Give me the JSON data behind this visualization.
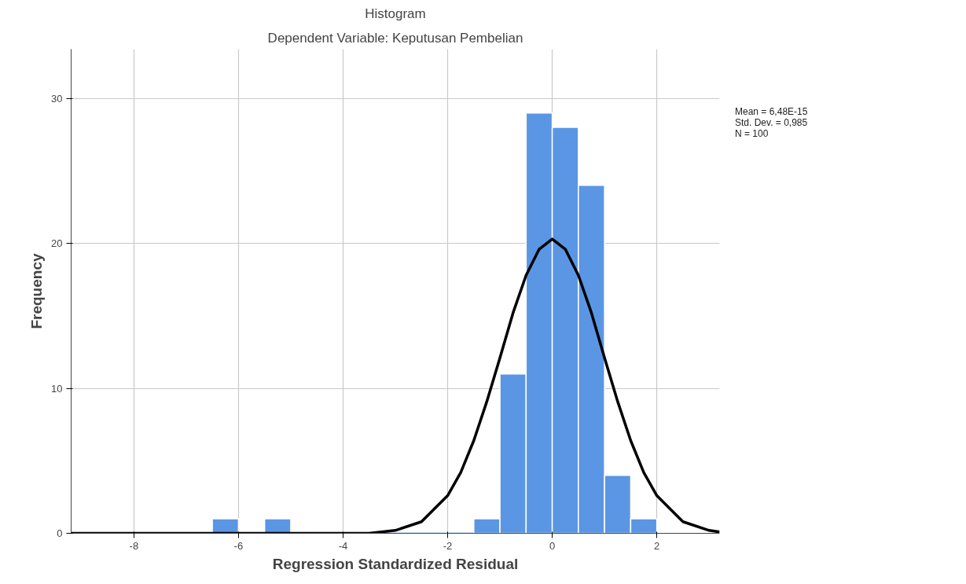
{
  "chart_data": {
    "type": "histogram",
    "title": "Histogram",
    "subtitle": "Dependent Variable: Keputusan Pembelian",
    "xlabel": "Regression Standardized Residual",
    "ylabel": "Frequency",
    "bins": [
      -6.5,
      -6,
      -5.5,
      -5,
      -4.5,
      -4,
      -3.5,
      -3,
      -2.5,
      -2,
      -1.5,
      -1,
      -0.5,
      0,
      0.5,
      1,
      1.5,
      2
    ],
    "values": [
      1,
      0,
      1,
      0,
      0,
      0,
      0,
      0,
      0,
      0,
      1,
      11,
      29,
      28,
      24,
      4,
      1
    ],
    "color": "#5a96e4",
    "series": [
      {
        "type": "line",
        "color": "#000000",
        "x": [
          -9.2,
          -4,
          -3.5,
          -3,
          -2.5,
          -2,
          -1.75,
          -1.5,
          -1.25,
          -1,
          -0.75,
          -0.5,
          -0.25,
          0,
          0.25,
          0.5,
          0.75,
          1,
          1.25,
          1.5,
          1.75,
          2,
          2.5,
          3,
          3.2
        ],
        "values": [
          0,
          0,
          0,
          0.2,
          0.8,
          2.6,
          4.2,
          6.4,
          9.1,
          12.1,
          15.2,
          17.8,
          19.6,
          20.3,
          19.6,
          17.8,
          15.2,
          12.1,
          9.1,
          6.4,
          4.2,
          2.6,
          0.8,
          0.2,
          0.1
        ]
      }
    ],
    "annotations": [
      "Mean = 6,48E-15",
      "Std. Dev. = 0,985",
      "N = 100"
    ],
    "xlim": [
      -9.2,
      3.2
    ],
    "xticks": [
      -8,
      -6,
      -4,
      -2,
      0,
      2
    ],
    "ylim": [
      0,
      33.4
    ],
    "yticks": [
      0,
      10,
      20,
      30
    ],
    "grid": true
  }
}
